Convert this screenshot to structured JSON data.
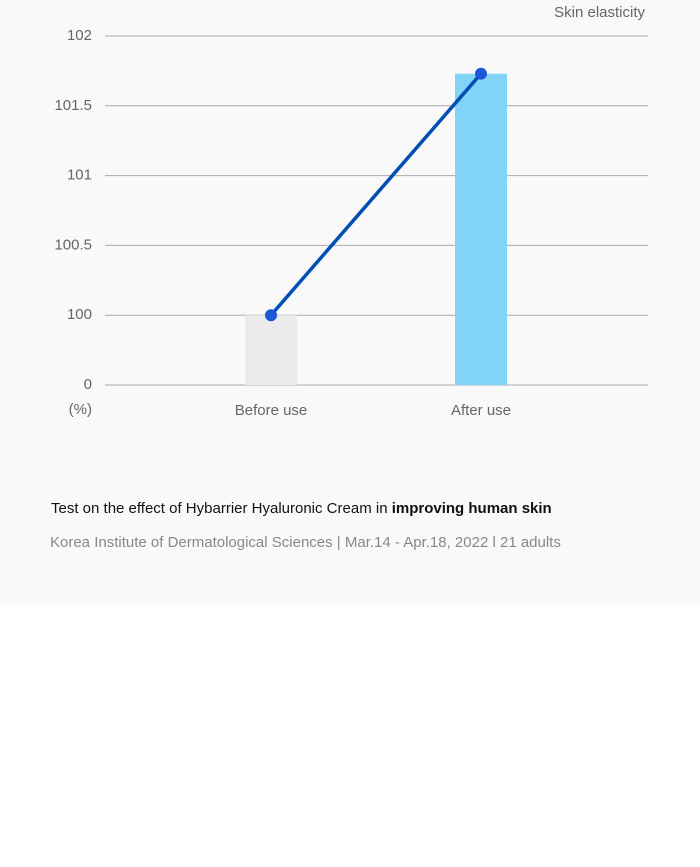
{
  "chart_data": {
    "type": "bar-line",
    "label": "Skin elasticity",
    "y_unit": "(%)",
    "categories": [
      "Before use",
      "After use"
    ],
    "values": [
      100,
      101.73
    ],
    "bar_colors": [
      "#ebebeb",
      "#81d4f7"
    ],
    "line_color": "#0050b4",
    "ylim": [
      0,
      102
    ],
    "yticks": [
      0,
      100,
      100.5,
      101,
      101.5,
      102
    ],
    "grid": true
  },
  "caption": {
    "text": "Test on the effect of Hybarrier Hyaluronic Cream in ",
    "bold": "improving human skin"
  },
  "source": "Korea Institute of Dermatological Sciences | Mar.14 - Apr.18, 2022 l 21 adults"
}
